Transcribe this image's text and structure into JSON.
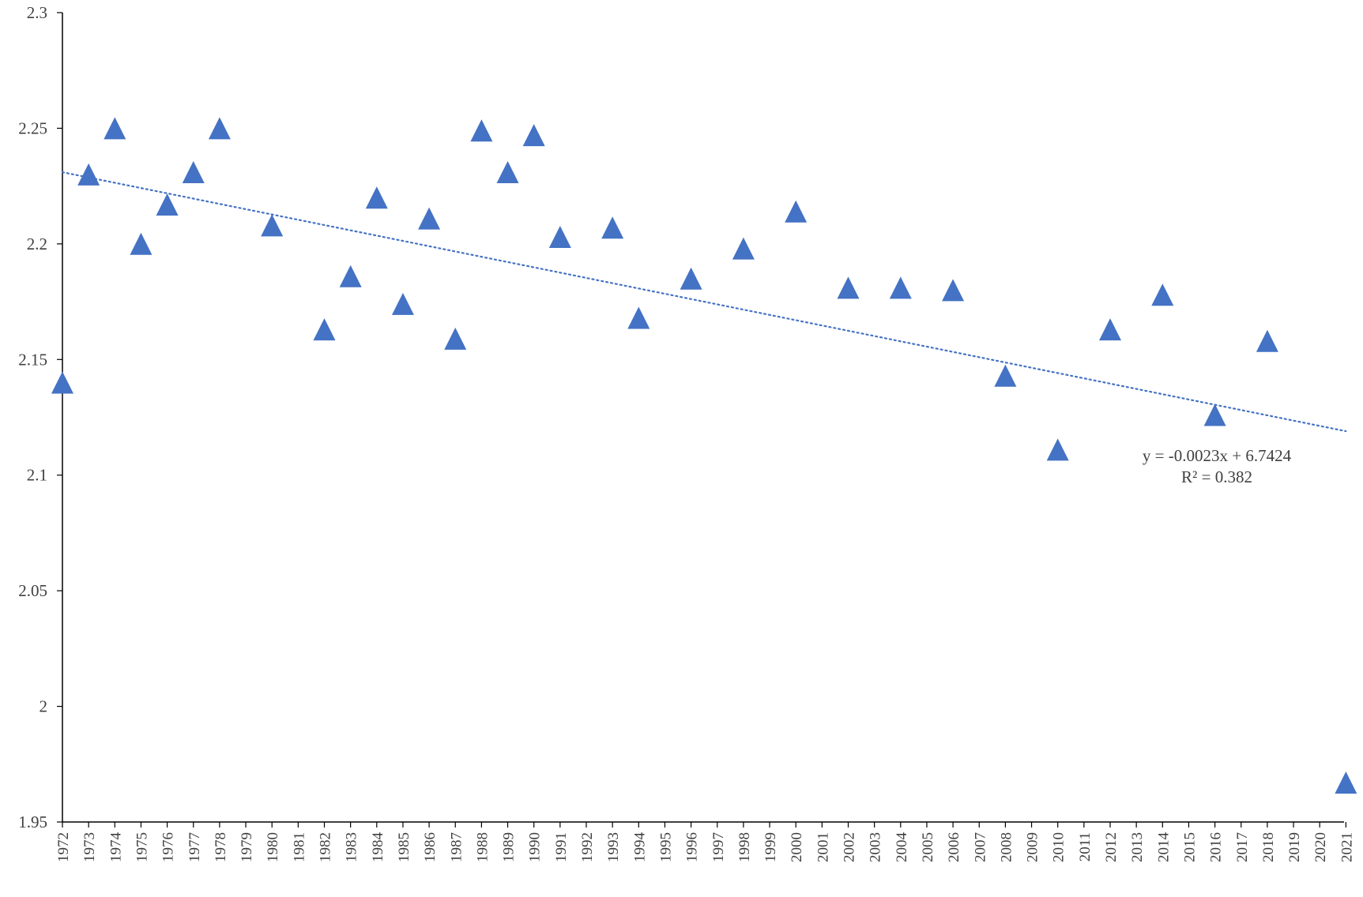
{
  "chart_data": {
    "type": "scatter",
    "title": "",
    "xlabel": "",
    "ylabel": "",
    "ylim": [
      1.95,
      2.3
    ],
    "yticks": [
      "1.95",
      "2",
      "2.05",
      "2.1",
      "2.15",
      "2.2",
      "2.25",
      "2.3"
    ],
    "categories": [
      "1972",
      "1973",
      "1974",
      "1975",
      "1976",
      "1977",
      "1978",
      "1979",
      "1980",
      "1981",
      "1982",
      "1983",
      "1984",
      "1985",
      "1986",
      "1987",
      "1988",
      "1989",
      "1990",
      "1991",
      "1992",
      "1993",
      "1994",
      "1995",
      "1996",
      "1997",
      "1998",
      "1999",
      "2000",
      "2001",
      "2002",
      "2003",
      "2004",
      "2005",
      "2006",
      "2007",
      "2008",
      "2009",
      "2010",
      "2011",
      "2012",
      "2013",
      "2014",
      "2015",
      "2016",
      "2017",
      "2018",
      "2019",
      "2020",
      "2021"
    ],
    "series": [
      {
        "marker": "triangle",
        "color": "#4472C4",
        "points": [
          {
            "x": "1972",
            "y": 2.139
          },
          {
            "x": "1973",
            "y": 2.229
          },
          {
            "x": "1974",
            "y": 2.249
          },
          {
            "x": "1975",
            "y": 2.199
          },
          {
            "x": "1976",
            "y": 2.216
          },
          {
            "x": "1977",
            "y": 2.23
          },
          {
            "x": "1978",
            "y": 2.249
          },
          {
            "x": "1980",
            "y": 2.207
          },
          {
            "x": "1982",
            "y": 2.162
          },
          {
            "x": "1983",
            "y": 2.185
          },
          {
            "x": "1984",
            "y": 2.219
          },
          {
            "x": "1985",
            "y": 2.173
          },
          {
            "x": "1986",
            "y": 2.21
          },
          {
            "x": "1987",
            "y": 2.158
          },
          {
            "x": "1988",
            "y": 2.248
          },
          {
            "x": "1989",
            "y": 2.23
          },
          {
            "x": "1990",
            "y": 2.246
          },
          {
            "x": "1991",
            "y": 2.202
          },
          {
            "x": "1993",
            "y": 2.206
          },
          {
            "x": "1994",
            "y": 2.167
          },
          {
            "x": "1996",
            "y": 2.184
          },
          {
            "x": "1998",
            "y": 2.197
          },
          {
            "x": "2000",
            "y": 2.213
          },
          {
            "x": "2002",
            "y": 2.18
          },
          {
            "x": "2004",
            "y": 2.18
          },
          {
            "x": "2006",
            "y": 2.179
          },
          {
            "x": "2008",
            "y": 2.142
          },
          {
            "x": "2010",
            "y": 2.11
          },
          {
            "x": "2012",
            "y": 2.162
          },
          {
            "x": "2014",
            "y": 2.177
          },
          {
            "x": "2016",
            "y": 2.125
          },
          {
            "x": "2018",
            "y": 2.157
          },
          {
            "x": "2021",
            "y": 1.966
          }
        ]
      }
    ],
    "trendline": {
      "type": "linear",
      "style": "dotted",
      "color": "#4472C4",
      "start": {
        "x": "1972",
        "y": 2.231
      },
      "end": {
        "x": "2021",
        "y": 2.119
      },
      "equation": "y = -0.0023x + 6.7424",
      "r_squared": "R² = 0.382"
    },
    "grid": false,
    "legend": "none"
  }
}
